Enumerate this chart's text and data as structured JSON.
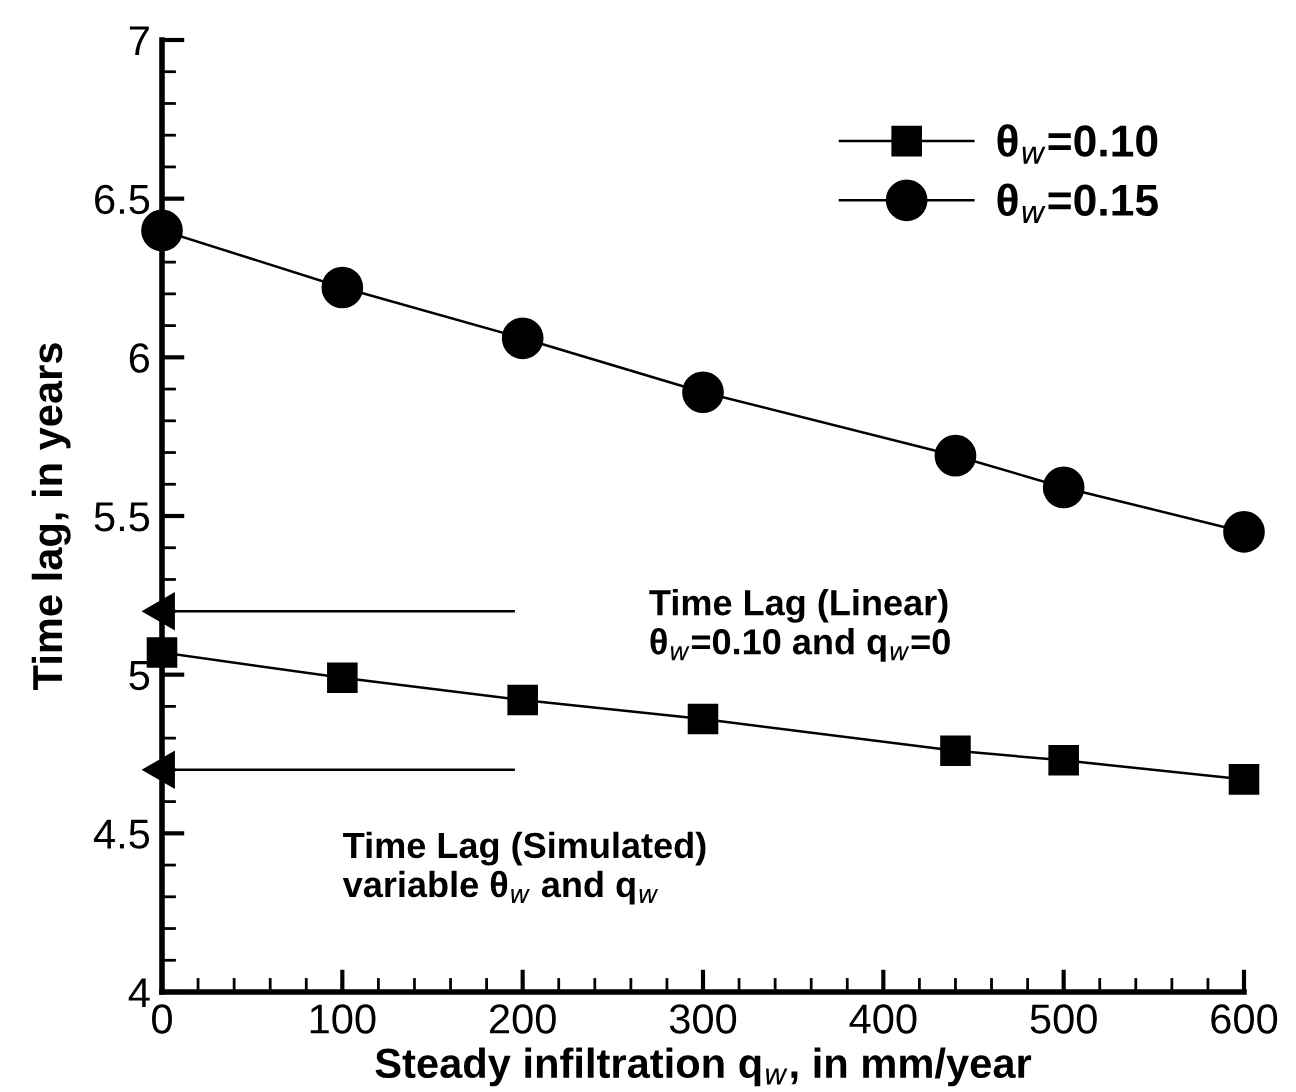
{
  "chart_data": {
    "type": "line",
    "xlabel": "Steady infiltration q$_{w}$, in mm/year",
    "ylabel": "Time lag, in years",
    "x": [
      0,
      100,
      200,
      300,
      440,
      500,
      600
    ],
    "series": [
      {
        "name": "θ$_{w}$=0.10",
        "color": "#000000",
        "marker": "square",
        "values": [
          5.07,
          4.99,
          4.92,
          4.86,
          4.76,
          4.73,
          4.67
        ]
      },
      {
        "name": "θ$_{w}$=0.15",
        "color": "#000000",
        "marker": "circle",
        "values": [
          6.4,
          6.22,
          6.06,
          5.89,
          5.69,
          5.59,
          5.45
        ]
      }
    ],
    "ref_lines": [
      {
        "axis": "y",
        "value": 5.2,
        "color": "#000000"
      },
      {
        "axis": "y",
        "value": 4.7,
        "color": "#000000"
      }
    ],
    "annotations": [
      "Time Lag (Linear)\nθ$_{w}$=0.10 and q$_{w}$=0",
      "Time Lag (Simulated)\nvariable θ$_{w}$ and q$_{w}$"
    ],
    "xlim": [
      0,
      600
    ],
    "ylim": [
      4,
      7
    ],
    "xticks": [
      0,
      100,
      200,
      300,
      400,
      500,
      600
    ],
    "yticks": [
      4,
      4.5,
      5,
      5.5,
      6,
      6.5,
      7
    ],
    "line_style": "solid",
    "grid": false,
    "legend": "top right"
  }
}
